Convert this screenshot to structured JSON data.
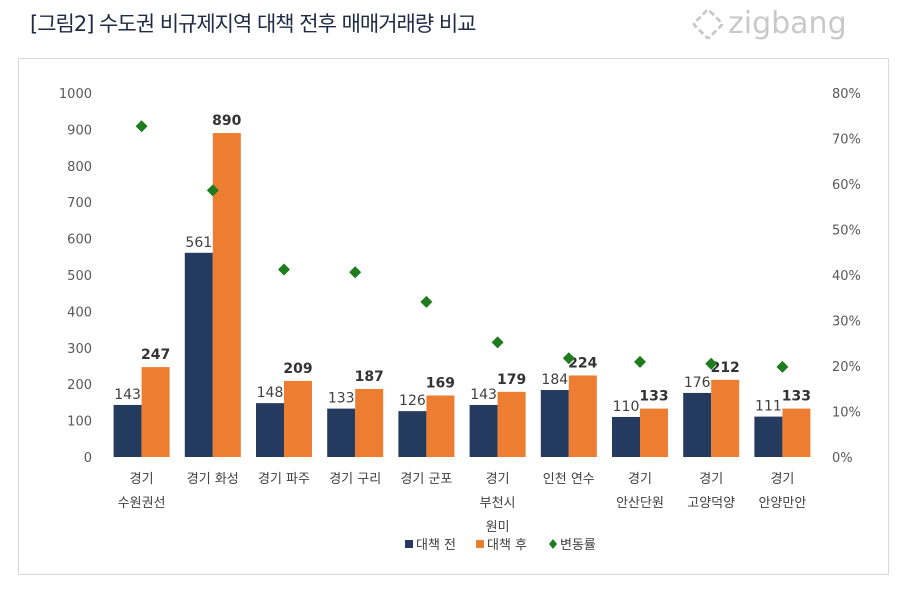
{
  "title": "[그림2] 수도권 비규제지역 대책 전후 매매거래량 비교",
  "logo": "zigbang",
  "colors": {
    "before": "#243a5e",
    "after": "#ed7d31",
    "change": "#1e7b1e"
  },
  "chart_data": {
    "type": "bar",
    "categories": [
      [
        "경기",
        "수원권선"
      ],
      [
        "경기 화성"
      ],
      [
        "경기 파주"
      ],
      [
        "경기 구리"
      ],
      [
        "경기 군포"
      ],
      [
        "경기",
        "부천시",
        "원미"
      ],
      [
        "인천 연수"
      ],
      [
        "경기",
        "안산단원"
      ],
      [
        "경기",
        "고양덕양"
      ],
      [
        "경기",
        "안양만안"
      ]
    ],
    "series": [
      {
        "name": "대책 전",
        "axis": "left",
        "type": "bar",
        "values": [
          143,
          561,
          148,
          133,
          126,
          143,
          184,
          110,
          176,
          111
        ]
      },
      {
        "name": "대책 후",
        "axis": "left",
        "type": "bar",
        "values": [
          247,
          890,
          209,
          187,
          169,
          179,
          224,
          133,
          212,
          133
        ]
      },
      {
        "name": "변동률",
        "axis": "right",
        "type": "scatter",
        "marker": "diamond",
        "values": [
          72.7,
          58.6,
          41.2,
          40.6,
          34.1,
          25.2,
          21.7,
          20.9,
          20.5,
          19.8
        ]
      }
    ],
    "ylim": [
      0,
      1000
    ],
    "yticks": [
      "0",
      "100",
      "200",
      "300",
      "400",
      "500",
      "600",
      "700",
      "800",
      "900",
      "1000"
    ],
    "y2lim": [
      0,
      80
    ],
    "y2ticks": [
      "0%",
      "10%",
      "20%",
      "30%",
      "40%",
      "50%",
      "60%",
      "70%",
      "80%"
    ],
    "grid": false,
    "legend": "bottom"
  }
}
